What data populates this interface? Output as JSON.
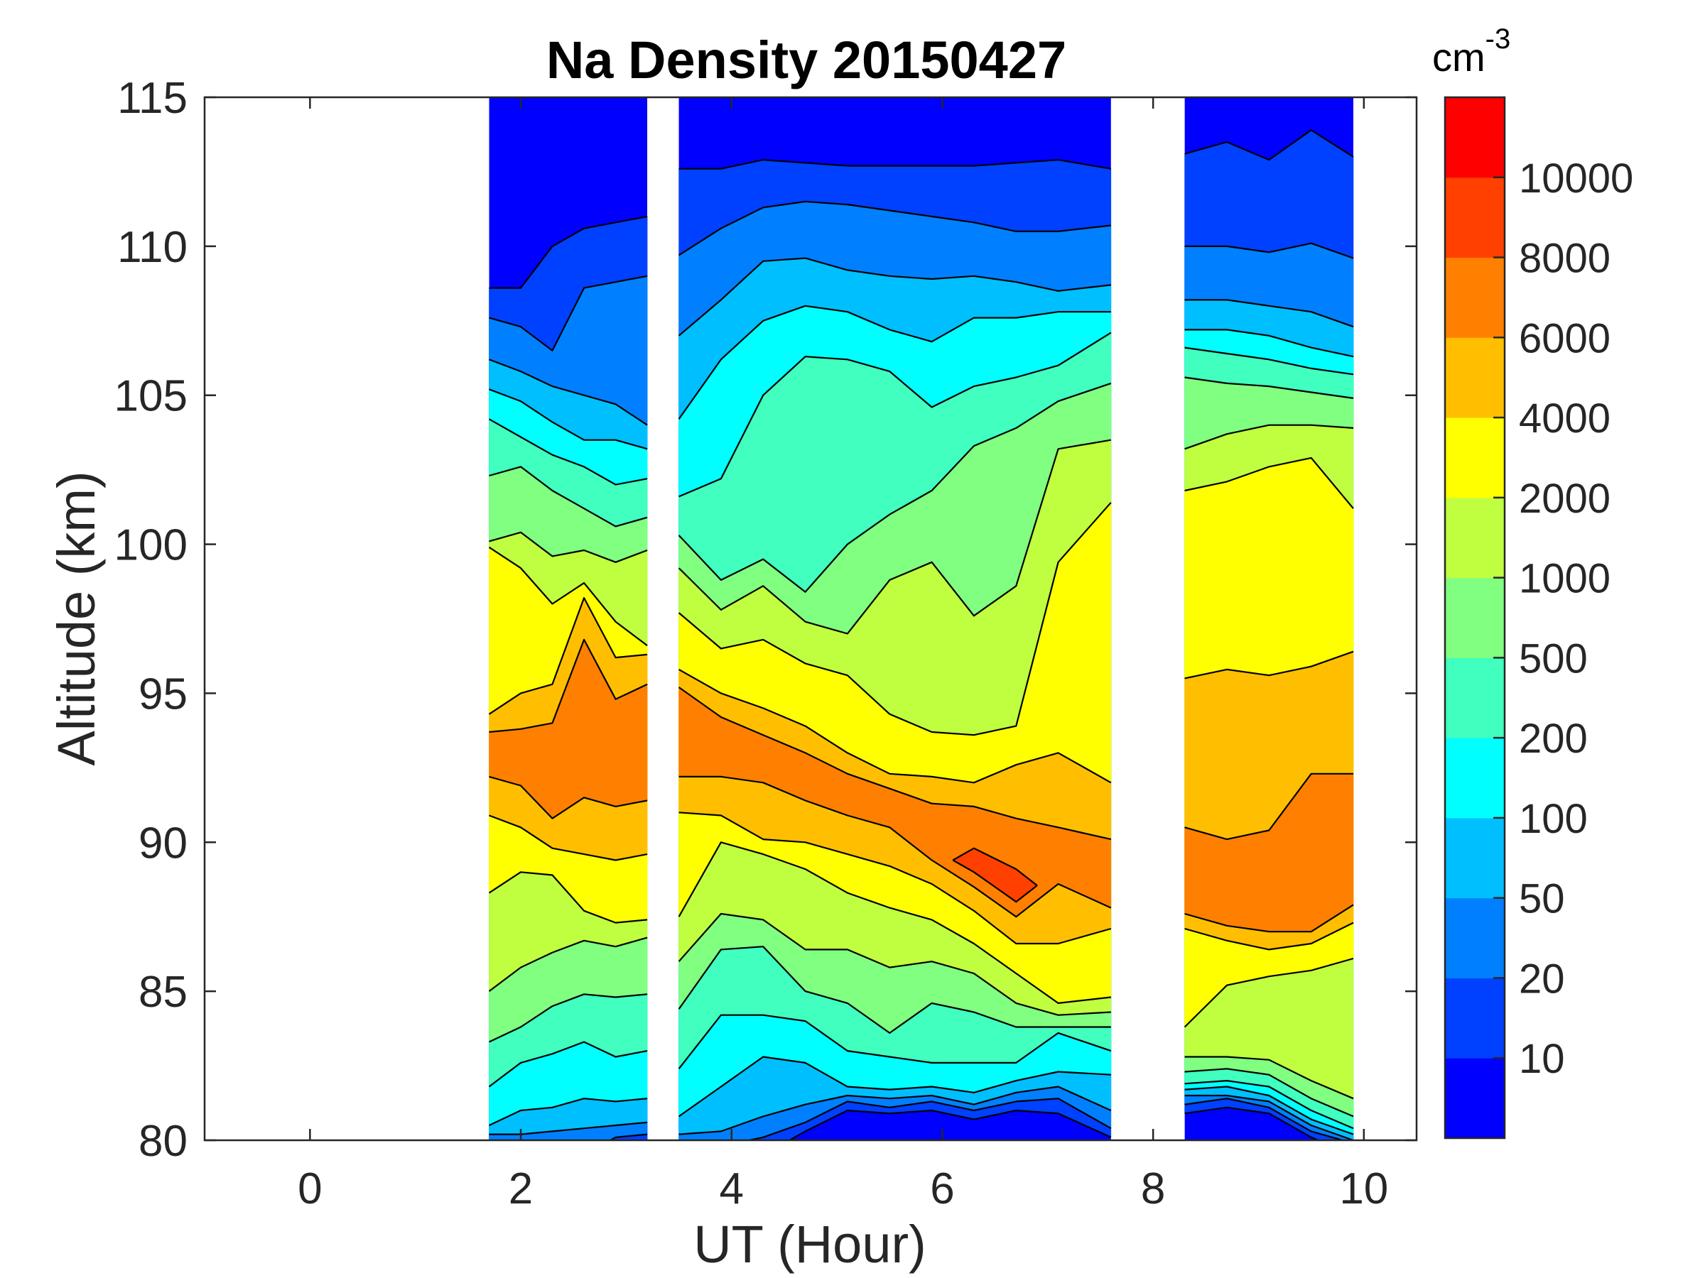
{
  "chart_data": {
    "type": "contour",
    "title": "Na Density 20150427",
    "xlabel": "UT (Hour)",
    "ylabel": "Altitude (km)",
    "xlim": [
      -1,
      10.5
    ],
    "ylim": [
      80,
      115
    ],
    "xticks": [
      0,
      2,
      4,
      6,
      8,
      10
    ],
    "yticks": [
      80,
      85,
      90,
      95,
      100,
      105,
      110,
      115
    ],
    "grid": false,
    "colorbar": {
      "unit_base": "cm",
      "unit_exponent": "-3",
      "location": "right"
    },
    "levels": [
      10,
      20,
      50,
      100,
      200,
      500,
      1000,
      2000,
      4000,
      6000,
      8000,
      10000
    ],
    "colors": [
      "#0000FF",
      "#0040FF",
      "#0080FF",
      "#00BFFF",
      "#00FFFF",
      "#40FFBF",
      "#80FF80",
      "#BFFF40",
      "#FFFF00",
      "#FFBF00",
      "#FF8000",
      "#FF4000",
      "#FF0000"
    ],
    "blocks": [
      {
        "profiles": [
          {
            "t": 1.7,
            "hi": [
              108.6,
              107.6,
              106.2,
              105.2,
              104.2,
              102.3,
              100.1,
              99.9,
              94.3,
              93.7,
              null,
              null
            ],
            "lo": [
              79.5,
              79.5,
              80.2,
              80.5,
              81.8,
              83.3,
              85.0,
              88.3,
              90.9,
              92.2,
              null,
              null
            ]
          },
          {
            "t": 2.0,
            "hi": [
              108.6,
              107.3,
              105.8,
              104.8,
              103.6,
              102.6,
              100.4,
              99.2,
              95.0,
              93.8,
              null,
              null
            ],
            "lo": [
              79.5,
              79.5,
              80.2,
              81.0,
              82.6,
              83.8,
              85.8,
              89.0,
              90.5,
              91.9,
              null,
              null
            ]
          },
          {
            "t": 2.3,
            "hi": [
              110.0,
              106.5,
              105.3,
              104.1,
              103.0,
              101.8,
              99.6,
              98.0,
              95.3,
              94.0,
              null,
              null
            ],
            "lo": [
              79.5,
              79.5,
              80.3,
              81.1,
              82.9,
              84.5,
              86.3,
              88.9,
              89.8,
              90.8,
              null,
              null
            ]
          },
          {
            "t": 2.6,
            "hi": [
              110.6,
              108.6,
              105.0,
              103.5,
              102.6,
              101.2,
              99.8,
              98.7,
              98.2,
              96.8,
              null,
              null
            ],
            "lo": [
              79.5,
              79.5,
              80.4,
              81.4,
              83.3,
              84.9,
              86.7,
              87.7,
              89.6,
              91.5,
              null,
              null
            ]
          },
          {
            "t": 2.9,
            "hi": [
              110.8,
              108.8,
              104.7,
              103.5,
              102.0,
              100.6,
              99.4,
              97.4,
              96.2,
              94.8,
              null,
              null
            ],
            "lo": [
              79.5,
              80.1,
              80.5,
              81.3,
              82.8,
              84.8,
              86.5,
              87.3,
              89.4,
              91.2,
              null,
              null
            ]
          },
          {
            "t": 3.2,
            "hi": [
              111.0,
              109.0,
              104.0,
              103.2,
              102.2,
              100.9,
              99.8,
              96.6,
              96.3,
              95.3,
              null,
              null
            ],
            "lo": [
              79.5,
              80.2,
              80.6,
              81.4,
              83.0,
              84.9,
              86.8,
              87.4,
              89.6,
              91.4,
              null,
              null
            ]
          }
        ]
      },
      {
        "profiles": [
          {
            "t": 3.5,
            "hi": [
              112.6,
              109.7,
              107.0,
              104.2,
              101.6,
              100.3,
              99.2,
              97.7,
              95.8,
              95.2,
              null,
              null
            ],
            "lo": [
              79.5,
              79.8,
              80.2,
              80.8,
              82.4,
              84.4,
              86.0,
              87.5,
              91.0,
              92.2,
              null,
              null
            ]
          },
          {
            "t": 3.9,
            "hi": [
              112.6,
              110.6,
              108.2,
              106.2,
              102.2,
              98.8,
              97.8,
              96.5,
              95.0,
              94.2,
              null,
              null
            ],
            "lo": [
              79.5,
              79.8,
              80.3,
              81.8,
              84.2,
              86.4,
              87.6,
              90.0,
              90.9,
              92.2,
              null,
              null
            ]
          },
          {
            "t": 4.3,
            "hi": [
              112.9,
              111.3,
              109.5,
              107.5,
              105.0,
              99.5,
              98.6,
              96.8,
              94.5,
              93.6,
              null,
              null
            ],
            "lo": [
              79.5,
              80.1,
              80.8,
              82.8,
              84.2,
              86.5,
              87.4,
              89.6,
              90.1,
              92.0,
              null,
              null
            ]
          },
          {
            "t": 4.7,
            "hi": [
              112.8,
              111.5,
              109.6,
              108.0,
              106.3,
              98.4,
              97.4,
              96.0,
              93.9,
              93.0,
              null,
              null
            ],
            "lo": [
              80.3,
              80.6,
              81.2,
              82.6,
              84.0,
              85.0,
              86.4,
              89.1,
              90.0,
              91.4,
              null,
              null
            ]
          },
          {
            "t": 5.1,
            "hi": [
              112.7,
              111.4,
              109.2,
              107.8,
              106.2,
              100.0,
              97.0,
              95.6,
              93.0,
              92.3,
              null,
              null
            ],
            "lo": [
              81.0,
              81.3,
              81.5,
              81.8,
              83.0,
              84.6,
              86.4,
              88.3,
              89.6,
              90.9,
              null,
              null
            ]
          },
          {
            "t": 5.5,
            "hi": [
              112.7,
              111.2,
              109.0,
              107.2,
              105.8,
              101.0,
              98.8,
              94.3,
              92.3,
              91.8,
              null,
              null
            ],
            "lo": [
              80.9,
              81.1,
              81.4,
              81.7,
              82.8,
              83.6,
              85.8,
              87.8,
              89.2,
              90.5,
              null,
              null
            ]
          },
          {
            "t": 5.9,
            "hi": [
              112.7,
              111.0,
              108.9,
              106.8,
              104.6,
              101.8,
              99.4,
              93.7,
              92.2,
              91.3,
              null,
              null
            ],
            "lo": [
              81.0,
              81.3,
              81.5,
              81.8,
              82.6,
              84.6,
              86.0,
              87.4,
              88.6,
              89.4,
              null,
              null
            ]
          },
          {
            "t": 6.3,
            "hi": [
              112.7,
              110.8,
              109.0,
              107.6,
              105.3,
              103.3,
              97.6,
              93.6,
              92.0,
              91.2,
              89.8,
              null
            ],
            "lo": [
              80.7,
              81.0,
              81.2,
              81.6,
              82.6,
              84.3,
              85.6,
              86.6,
              87.7,
              88.5,
              89.0,
              null
            ]
          },
          {
            "t": 6.7,
            "hi": [
              112.8,
              110.5,
              108.8,
              107.6,
              105.6,
              103.9,
              98.6,
              93.9,
              92.6,
              90.8,
              89.1,
              null
            ],
            "lo": [
              81.0,
              81.3,
              81.6,
              82.0,
              82.6,
              83.8,
              84.6,
              85.6,
              86.6,
              87.5,
              88.0,
              null
            ]
          },
          {
            "t": 7.1,
            "hi": [
              112.9,
              110.5,
              108.5,
              107.8,
              106.0,
              104.8,
              103.2,
              99.4,
              93.0,
              90.5,
              null,
              null
            ],
            "lo": [
              80.9,
              81.4,
              81.8,
              82.3,
              83.6,
              83.8,
              84.2,
              84.6,
              86.6,
              88.6,
              null,
              null
            ]
          },
          {
            "t": 7.6,
            "hi": [
              112.6,
              110.7,
              108.7,
              107.8,
              107.1,
              105.4,
              103.5,
              101.4,
              92.0,
              90.1,
              null,
              null
            ],
            "lo": [
              80.1,
              80.4,
              81.0,
              82.2,
              83.0,
              83.8,
              84.3,
              84.8,
              87.1,
              87.8,
              null,
              null
            ]
          }
        ]
      },
      {
        "profiles": [
          {
            "t": 8.3,
            "hi": [
              113.1,
              110.0,
              108.2,
              107.2,
              106.6,
              105.6,
              103.2,
              101.8,
              95.5,
              90.5,
              null,
              null
            ],
            "lo": [
              80.9,
              81.2,
              81.5,
              81.7,
              81.9,
              82.3,
              82.8,
              83.8,
              87.1,
              87.6,
              null,
              null
            ]
          },
          {
            "t": 8.7,
            "hi": [
              113.5,
              110.0,
              108.2,
              107.2,
              106.4,
              105.4,
              103.7,
              102.1,
              95.8,
              90.1,
              null,
              null
            ],
            "lo": [
              81.1,
              81.4,
              81.5,
              81.8,
              82.0,
              82.4,
              82.8,
              85.2,
              86.7,
              87.2,
              null,
              null
            ]
          },
          {
            "t": 9.1,
            "hi": [
              112.9,
              109.8,
              108.0,
              107.0,
              106.2,
              105.3,
              104.0,
              102.6,
              95.6,
              90.4,
              null,
              null
            ],
            "lo": [
              80.9,
              81.1,
              81.3,
              81.5,
              81.8,
              82.2,
              82.7,
              85.5,
              86.4,
              87.0,
              null,
              null
            ]
          },
          {
            "t": 9.5,
            "hi": [
              113.9,
              110.1,
              107.8,
              106.6,
              105.9,
              105.1,
              104.0,
              102.9,
              95.9,
              92.3,
              null,
              null
            ],
            "lo": [
              80.1,
              80.3,
              80.5,
              80.7,
              81.0,
              81.4,
              82.0,
              85.7,
              86.6,
              87.0,
              null,
              null
            ]
          },
          {
            "t": 9.9,
            "hi": [
              113.0,
              109.6,
              107.3,
              106.3,
              105.7,
              104.9,
              103.9,
              101.2,
              96.4,
              92.3,
              null,
              null
            ],
            "lo": [
              79.5,
              79.9,
              80.0,
              80.2,
              80.4,
              80.8,
              81.4,
              86.1,
              87.3,
              87.9,
              null,
              null
            ]
          }
        ]
      }
    ]
  }
}
